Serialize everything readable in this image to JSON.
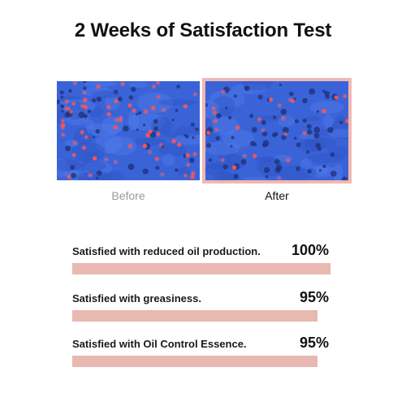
{
  "title": "2 Weeks of Satisfaction Test",
  "images": {
    "before_caption": "Before",
    "after_caption": "After",
    "frame_color": "#f1b7b2",
    "skin_color": "#3a63d8",
    "dot_color": "#ff4040"
  },
  "stats": [
    {
      "label": "Satisfied with reduced oil production.",
      "value": "100%",
      "percent": 100
    },
    {
      "label": "Satisfied with greasiness.",
      "value": "95%",
      "percent": 95
    },
    {
      "label": "Satisfied with Oil Control Essence.",
      "value": "95%",
      "percent": 95
    }
  ],
  "bar_color": "#e8b8b1"
}
